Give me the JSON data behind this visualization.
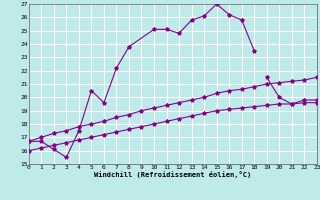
{
  "xlabel": "Windchill (Refroidissement éolien,°C)",
  "bg_color": "#beeaea",
  "grid_color": "#ffffff",
  "line_color": "#880088",
  "xlim": [
    0,
    23
  ],
  "ylim": [
    15,
    27
  ],
  "xticks": [
    0,
    1,
    2,
    3,
    4,
    5,
    6,
    7,
    8,
    9,
    10,
    11,
    12,
    13,
    14,
    15,
    16,
    17,
    18,
    19,
    20,
    21,
    22,
    23
  ],
  "yticks": [
    15,
    16,
    17,
    18,
    19,
    20,
    21,
    22,
    23,
    24,
    25,
    26,
    27
  ],
  "curve1_x": [
    0,
    1,
    2,
    3,
    4,
    5,
    6,
    7,
    8,
    10,
    11,
    12,
    13,
    14,
    15,
    16,
    17,
    18
  ],
  "curve1_y": [
    16.7,
    16.7,
    16.1,
    15.5,
    17.5,
    20.5,
    19.6,
    22.2,
    23.8,
    25.1,
    25.1,
    24.8,
    25.8,
    26.1,
    27.0,
    26.2,
    25.8,
    23.5
  ],
  "curve2_x": [
    19,
    20,
    21,
    22,
    23
  ],
  "curve2_y": [
    21.5,
    20.0,
    19.5,
    19.8,
    19.8
  ],
  "line1_x": [
    0,
    1,
    2,
    3,
    4,
    5,
    6,
    7,
    8,
    9,
    10,
    11,
    12,
    13,
    14,
    15,
    16,
    17,
    18,
    19,
    20,
    21,
    22,
    23
  ],
  "line1_y": [
    16.7,
    17.0,
    17.3,
    17.5,
    17.8,
    18.0,
    18.2,
    18.5,
    18.7,
    19.0,
    19.2,
    19.4,
    19.6,
    19.8,
    20.0,
    20.3,
    20.5,
    20.6,
    20.8,
    21.0,
    21.1,
    21.2,
    21.3,
    21.5
  ],
  "line2_x": [
    0,
    1,
    2,
    3,
    4,
    5,
    6,
    7,
    8,
    9,
    10,
    11,
    12,
    13,
    14,
    15,
    16,
    17,
    18,
    19,
    20,
    21,
    22,
    23
  ],
  "line2_y": [
    16.0,
    16.2,
    16.4,
    16.6,
    16.8,
    17.0,
    17.2,
    17.4,
    17.6,
    17.8,
    18.0,
    18.2,
    18.4,
    18.6,
    18.8,
    19.0,
    19.1,
    19.2,
    19.3,
    19.4,
    19.5,
    19.5,
    19.6,
    19.6
  ]
}
